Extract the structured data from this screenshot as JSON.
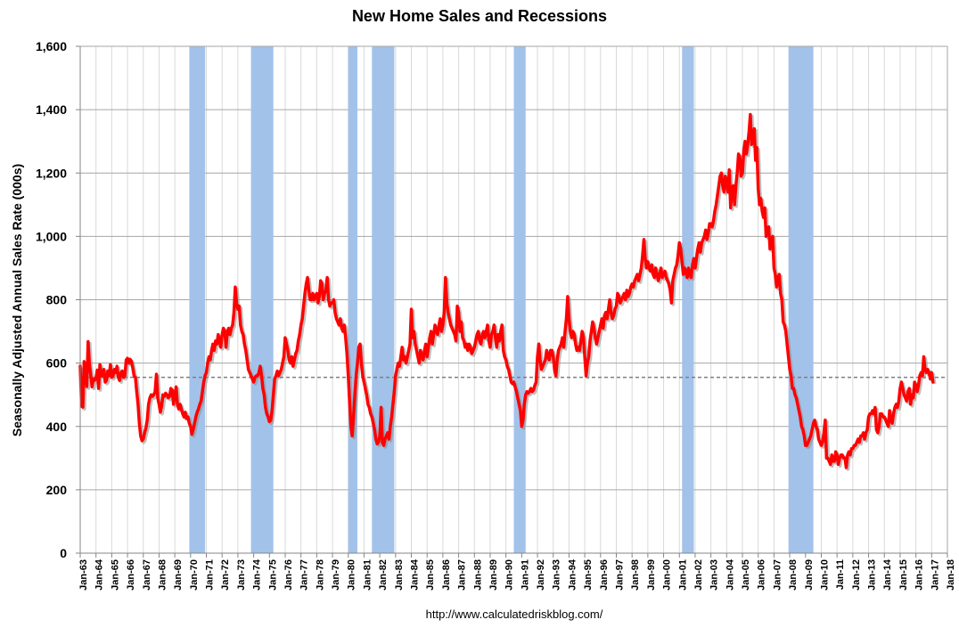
{
  "chart_data": {
    "type": "line",
    "title": "New Home Sales and Recessions",
    "xlabel": "",
    "ylabel": "Seasonally Adjusted Annual Sales Rate (000s)",
    "source": "http://www.calculatedriskblog.com/",
    "xlim": [
      1963,
      2018
    ],
    "ylim": [
      0,
      1600
    ],
    "grid": true,
    "x_ticks": [
      "Jan-63",
      "Jan-64",
      "Jan-65",
      "Jan-66",
      "Jan-67",
      "Jan-68",
      "Jan-69",
      "Jan-70",
      "Jan-71",
      "Jan-72",
      "Jan-73",
      "Jan-74",
      "Jan-75",
      "Jan-76",
      "Jan-77",
      "Jan-78",
      "Jan-79",
      "Jan-80",
      "Jan-81",
      "Jan-82",
      "Jan-83",
      "Jan-84",
      "Jan-85",
      "Jan-86",
      "Jan-87",
      "Jan-88",
      "Jan-89",
      "Jan-90",
      "Jan-91",
      "Jan-92",
      "Jan-93",
      "Jan-94",
      "Jan-95",
      "Jan-96",
      "Jan-97",
      "Jan-98",
      "Jan-99",
      "Jan-00",
      "Jan-01",
      "Jan-02",
      "Jan-03",
      "Jan-04",
      "Jan-05",
      "Jan-06",
      "Jan-07",
      "Jan-08",
      "Jan-09",
      "Jan-10",
      "Jan-11",
      "Jan-12",
      "Jan-13",
      "Jan-14",
      "Jan-15",
      "Jan-16",
      "Jan-17",
      "Jan-18"
    ],
    "y_ticks": [
      {
        "value": 0,
        "label": "0"
      },
      {
        "value": 200,
        "label": "200"
      },
      {
        "value": 400,
        "label": "400"
      },
      {
        "value": 600,
        "label": "600"
      },
      {
        "value": 800,
        "label": "800"
      },
      {
        "value": 1000,
        "label": "1,000"
      },
      {
        "value": 1200,
        "label": "1,200"
      },
      {
        "value": 1400,
        "label": "1,400"
      },
      {
        "value": 1600,
        "label": "1,600"
      }
    ],
    "reference_line": {
      "value": 555
    },
    "recessions": [
      {
        "start": 1969.92,
        "end": 1970.92
      },
      {
        "start": 1973.83,
        "end": 1975.25
      },
      {
        "start": 1980.0,
        "end": 1980.58
      },
      {
        "start": 1981.5,
        "end": 1982.92
      },
      {
        "start": 1990.5,
        "end": 1991.25
      },
      {
        "start": 2001.17,
        "end": 2001.92
      },
      {
        "start": 2007.92,
        "end": 2009.5
      }
    ],
    "series": [
      {
        "start_year": 1963,
        "start_month": 1,
        "color": "#ff0000",
        "values": [
          591,
          464,
          461,
          605,
          586,
          526,
          668,
          597,
          563,
          525,
          549,
          546,
          553,
          578,
          520,
          595,
          560,
          560,
          580,
          540,
          545,
          575,
          560,
          595,
          555,
          560,
          580,
          570,
          590,
          555,
          545,
          570,
          575,
          555,
          560,
          610,
          615,
          600,
          612,
          605,
          585,
          560,
          555,
          510,
          470,
          410,
          370,
          355,
          360,
          380,
          395,
          420,
          470,
          490,
          500,
          495,
          500,
          510,
          565,
          490,
          470,
          445,
          465,
          500,
          495,
          505,
          500,
          490,
          495,
          520,
          515,
          470,
          500,
          525,
          470,
          455,
          470,
          455,
          440,
          430,
          445,
          425,
          430,
          410,
          400,
          375,
          390,
          410,
          430,
          445,
          455,
          470,
          480,
          510,
          540,
          560,
          570,
          600,
          620,
          610,
          640,
          660,
          640,
          670,
          660,
          690,
          670,
          650,
          690,
          710,
          700,
          650,
          700,
          710,
          690,
          710,
          720,
          760,
          840,
          790,
          770,
          780,
          720,
          700,
          690,
          660,
          640,
          610,
          580,
          570,
          560,
          550,
          540,
          555,
          560,
          560,
          570,
          590,
          560,
          520,
          500,
          460,
          440,
          430,
          415,
          420,
          450,
          500,
          550,
          560,
          575,
          560,
          570,
          580,
          600,
          620,
          680,
          660,
          640,
          610,
          600,
          620,
          590,
          610,
          630,
          640,
          670,
          690,
          720,
          740,
          780,
          820,
          850,
          870,
          830,
          800,
          800,
          820,
          800,
          810,
          820,
          790,
          810,
          860,
          850,
          800,
          820,
          830,
          870,
          800,
          780,
          790,
          790,
          800,
          760,
          740,
          730,
          720,
          740,
          710,
          700,
          720,
          680,
          630,
          560,
          480,
          400,
          370,
          430,
          500,
          560,
          600,
          650,
          660,
          600,
          560,
          540,
          520,
          500,
          470,
          460,
          440,
          430,
          410,
          390,
          360,
          345,
          350,
          370,
          460,
          350,
          340,
          360,
          370,
          380,
          360,
          400,
          430,
          470,
          510,
          560,
          580,
          600,
          590,
          620,
          650,
          610,
          620,
          600,
          620,
          640,
          660,
          770,
          680,
          700,
          660,
          640,
          620,
          600,
          640,
          620,
          610,
          640,
          660,
          620,
          650,
          680,
          700,
          660,
          690,
          720,
          700,
          690,
          720,
          740,
          700,
          720,
          760,
          870,
          790,
          760,
          740,
          720,
          710,
          700,
          690,
          670,
          780,
          760,
          700,
          730,
          680,
          670,
          650,
          660,
          640,
          660,
          650,
          630,
          640,
          650,
          670,
          690,
          700,
          670,
          660,
          690,
          700,
          680,
          700,
          720,
          670,
          650,
          690,
          700,
          720,
          680,
          650,
          690,
          670,
          700,
          720,
          640,
          620,
          610,
          590,
          580,
          560,
          540,
          535,
          540,
          525,
          510,
          490,
          470,
          450,
          400,
          420,
          470,
          500,
          510,
          505,
          510,
          520,
          510,
          515,
          530,
          540,
          620,
          660,
          610,
          580,
          590,
          600,
          610,
          640,
          620,
          610,
          640,
          640,
          620,
          580,
          560,
          610,
          640,
          650,
          660,
          680,
          650,
          700,
          740,
          810,
          740,
          700,
          680,
          700,
          690,
          660,
          640,
          650,
          640,
          670,
          700,
          680,
          620,
          560,
          600,
          620,
          670,
          700,
          730,
          710,
          680,
          660,
          680,
          700,
          720,
          740,
          710,
          750,
          760,
          740,
          770,
          800,
          760,
          740,
          750,
          770,
          780,
          820,
          810,
          790,
          800,
          810,
          820,
          800,
          830,
          810,
          820,
          840,
          850,
          840,
          860,
          870,
          880,
          860,
          880,
          900,
          940,
          990,
          930,
          900,
          920,
          900,
          890,
          910,
          880,
          870,
          900,
          880,
          860,
          880,
          900,
          870,
          880,
          890,
          870,
          860,
          850,
          830,
          790,
          860,
          880,
          900,
          910,
          940,
          980,
          960,
          920,
          880,
          900,
          890,
          870,
          900,
          880,
          870,
          910,
          930,
          900,
          930,
          960,
          980,
          950,
          980,
          990,
          1000,
          1020,
          990,
          1010,
          1040,
          1040,
          1030,
          1050,
          1080,
          1100,
          1130,
          1160,
          1190,
          1200,
          1160,
          1140,
          1190,
          1170,
          1140,
          1210,
          1090,
          1150,
          1160,
          1100,
          1160,
          1200,
          1260,
          1250,
          1190,
          1200,
          1270,
          1300,
          1260,
          1290,
          1330,
          1385,
          1290,
          1300,
          1340,
          1240,
          1280,
          1150,
          1100,
          1120,
          1080,
          1060,
          1090,
          1000,
          1010,
          1030,
          960,
          980,
          1000,
          900,
          880,
          840,
          870,
          880,
          820,
          800,
          730,
          720,
          700,
          660,
          620,
          580,
          560,
          520,
          520,
          500,
          490,
          470,
          450,
          430,
          400,
          390,
          370,
          340,
          340,
          350,
          360,
          370,
          390,
          410,
          420,
          400,
          390,
          360,
          350,
          340,
          350,
          380,
          420,
          300,
          300,
          290,
          280,
          310,
          290,
          290,
          320,
          310,
          280,
          300,
          310,
          310,
          300,
          300,
          270,
          310,
          320,
          310,
          330,
          330,
          340,
          340,
          350,
          360,
          350,
          370,
          370,
          380,
          360,
          380,
          390,
          430,
          440,
          440,
          450,
          440,
          460,
          390,
          380,
          400,
          440,
          440,
          430,
          430,
          420,
          410,
          400,
          450,
          420,
          410,
          440,
          460,
          470,
          460,
          480,
          520,
          540,
          520,
          500,
          490,
          480,
          510,
          520,
          470,
          500,
          490,
          540,
          530,
          510,
          530,
          560,
          570,
          560,
          620,
          580,
          570,
          580,
          570,
          550,
          570,
          540
        ]
      }
    ],
    "colors": {
      "recession": "#a3c2ea",
      "reference": "#7f7f7f",
      "grid_major": "#a6a6a6",
      "grid_minor": "#d9d9d9",
      "axis": "#868686",
      "shadow": "#8c8c8c"
    }
  }
}
